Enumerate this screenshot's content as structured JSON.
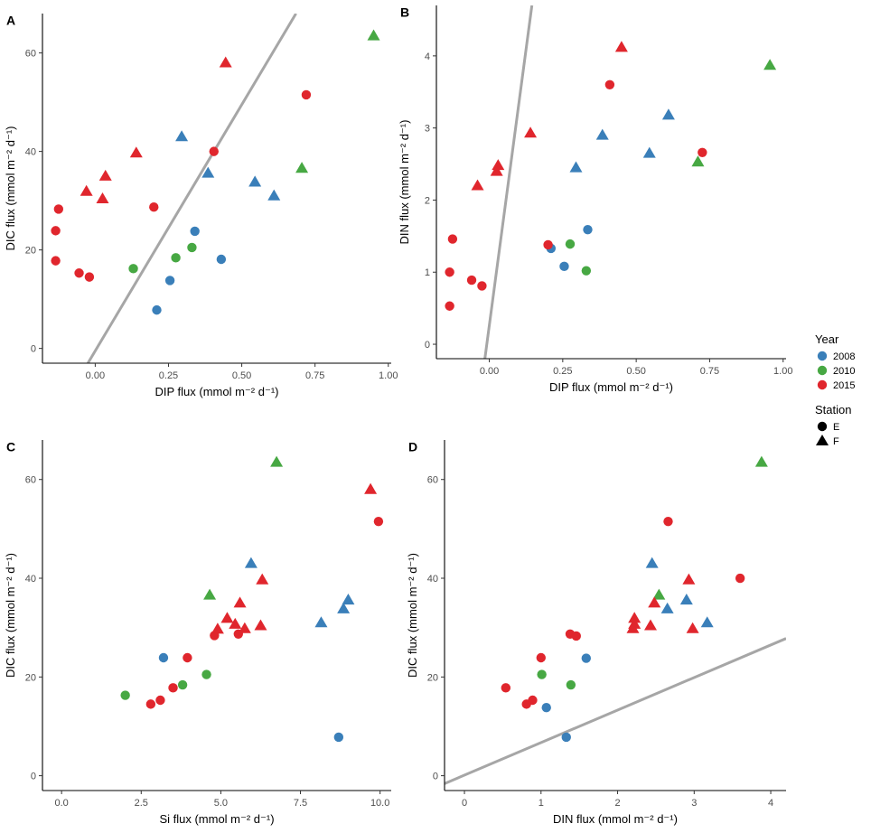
{
  "colors": {
    "y2008": "#3a7fb9",
    "y2010": "#47a843",
    "y2015": "#e0262d",
    "refline": "#a6a6a6"
  },
  "legend": {
    "year_title": "Year",
    "years": [
      {
        "label": "2008",
        "color": "#3a7fb9"
      },
      {
        "label": "2010",
        "color": "#47a843"
      },
      {
        "label": "2015",
        "color": "#e0262d"
      }
    ],
    "station_title": "Station",
    "stations": [
      {
        "label": "E",
        "shape": "circle"
      },
      {
        "label": "F",
        "shape": "triangle"
      }
    ]
  },
  "chart_data": [
    {
      "panel": "A",
      "type": "scatter",
      "xlabel": "DIP flux (mmol m⁻² d⁻¹)",
      "ylabel": "DIC flux (mmol m⁻² d⁻¹)",
      "xlim": [
        -0.18,
        1.01
      ],
      "ylim": [
        -3,
        68
      ],
      "xticks": [
        0,
        0.25,
        0.5,
        0.75,
        1.0
      ],
      "xtick_labels": [
        "0.00",
        "0.25",
        "0.50",
        "0.75",
        "1.00"
      ],
      "yticks": [
        0,
        20,
        40,
        60
      ],
      "ytick_labels": [
        "0",
        "20",
        "40",
        "60"
      ],
      "reference_line": {
        "x1": -0.025,
        "y1": -3,
        "x2": 0.685,
        "y2": 68
      },
      "points": [
        {
          "x": 0.21,
          "y": 7.8,
          "year": "2008",
          "station": "E"
        },
        {
          "x": 0.255,
          "y": 13.8,
          "year": "2008",
          "station": "E"
        },
        {
          "x": 0.34,
          "y": 23.8,
          "year": "2008",
          "station": "E"
        },
        {
          "x": 0.43,
          "y": 18.1,
          "year": "2008",
          "station": "E"
        },
        {
          "x": 0.295,
          "y": 43,
          "year": "2008",
          "station": "F"
        },
        {
          "x": 0.385,
          "y": 35.6,
          "year": "2008",
          "station": "F"
        },
        {
          "x": 0.545,
          "y": 33.8,
          "year": "2008",
          "station": "F"
        },
        {
          "x": 0.61,
          "y": 31,
          "year": "2008",
          "station": "F"
        },
        {
          "x": 0.13,
          "y": 16.2,
          "year": "2010",
          "station": "E"
        },
        {
          "x": 0.275,
          "y": 18.4,
          "year": "2010",
          "station": "E"
        },
        {
          "x": 0.33,
          "y": 20.5,
          "year": "2010",
          "station": "E"
        },
        {
          "x": 0.705,
          "y": 36.6,
          "year": "2010",
          "station": "F"
        },
        {
          "x": 0.95,
          "y": 63.5,
          "year": "2010",
          "station": "F"
        },
        {
          "x": -0.135,
          "y": 17.8,
          "year": "2015",
          "station": "E"
        },
        {
          "x": -0.135,
          "y": 23.9,
          "year": "2015",
          "station": "E"
        },
        {
          "x": -0.125,
          "y": 28.3,
          "year": "2015",
          "station": "E"
        },
        {
          "x": -0.055,
          "y": 15.3,
          "year": "2015",
          "station": "E"
        },
        {
          "x": -0.02,
          "y": 14.5,
          "year": "2015",
          "station": "E"
        },
        {
          "x": 0.2,
          "y": 28.7,
          "year": "2015",
          "station": "E"
        },
        {
          "x": 0.405,
          "y": 40,
          "year": "2015",
          "station": "E"
        },
        {
          "x": 0.72,
          "y": 51.5,
          "year": "2015",
          "station": "E"
        },
        {
          "x": -0.03,
          "y": 31.9,
          "year": "2015",
          "station": "F"
        },
        {
          "x": 0.025,
          "y": 30.4,
          "year": "2015",
          "station": "F"
        },
        {
          "x": 0.035,
          "y": 35,
          "year": "2015",
          "station": "F"
        },
        {
          "x": 0.14,
          "y": 39.7,
          "year": "2015",
          "station": "F"
        },
        {
          "x": 0.445,
          "y": 58,
          "year": "2015",
          "station": "F"
        }
      ]
    },
    {
      "panel": "B",
      "type": "scatter",
      "xlabel": "DIP flux (mmol m⁻² d⁻¹)",
      "ylabel": "DIN flux (mmol m⁻² d⁻¹)",
      "xlim": [
        -0.18,
        1.01
      ],
      "ylim": [
        -0.2,
        4.7
      ],
      "xticks": [
        0,
        0.25,
        0.5,
        0.75,
        1.0
      ],
      "xtick_labels": [
        "0.00",
        "0.25",
        "0.50",
        "0.75",
        "1.00"
      ],
      "yticks": [
        0,
        1,
        2,
        3,
        4
      ],
      "ytick_labels": [
        "0",
        "1",
        "2",
        "3",
        "4"
      ],
      "reference_line": {
        "x1": -0.015,
        "y1": -0.2,
        "x2": 0.145,
        "y2": 4.7
      },
      "points": [
        {
          "x": 0.21,
          "y": 1.33,
          "year": "2008",
          "station": "E"
        },
        {
          "x": 0.255,
          "y": 1.08,
          "year": "2008",
          "station": "E"
        },
        {
          "x": 0.335,
          "y": 1.59,
          "year": "2008",
          "station": "E"
        },
        {
          "x": 0.295,
          "y": 2.45,
          "year": "2008",
          "station": "F"
        },
        {
          "x": 0.385,
          "y": 2.9,
          "year": "2008",
          "station": "F"
        },
        {
          "x": 0.545,
          "y": 2.65,
          "year": "2008",
          "station": "F"
        },
        {
          "x": 0.61,
          "y": 3.18,
          "year": "2008",
          "station": "F"
        },
        {
          "x": 0.275,
          "y": 1.39,
          "year": "2010",
          "station": "E"
        },
        {
          "x": 0.33,
          "y": 1.02,
          "year": "2010",
          "station": "E"
        },
        {
          "x": 0.71,
          "y": 2.53,
          "year": "2010",
          "station": "F"
        },
        {
          "x": 0.955,
          "y": 3.87,
          "year": "2010",
          "station": "F"
        },
        {
          "x": -0.135,
          "y": 0.53,
          "year": "2015",
          "station": "E"
        },
        {
          "x": -0.135,
          "y": 1.0,
          "year": "2015",
          "station": "E"
        },
        {
          "x": -0.125,
          "y": 1.46,
          "year": "2015",
          "station": "E"
        },
        {
          "x": -0.06,
          "y": 0.89,
          "year": "2015",
          "station": "E"
        },
        {
          "x": -0.025,
          "y": 0.81,
          "year": "2015",
          "station": "E"
        },
        {
          "x": 0.2,
          "y": 1.38,
          "year": "2015",
          "station": "E"
        },
        {
          "x": 0.41,
          "y": 3.6,
          "year": "2015",
          "station": "E"
        },
        {
          "x": 0.725,
          "y": 2.66,
          "year": "2015",
          "station": "E"
        },
        {
          "x": -0.04,
          "y": 2.2,
          "year": "2015",
          "station": "F"
        },
        {
          "x": 0.025,
          "y": 2.4,
          "year": "2015",
          "station": "F"
        },
        {
          "x": 0.03,
          "y": 2.48,
          "year": "2015",
          "station": "F"
        },
        {
          "x": 0.14,
          "y": 2.93,
          "year": "2015",
          "station": "F"
        },
        {
          "x": 0.45,
          "y": 4.12,
          "year": "2015",
          "station": "F"
        }
      ]
    },
    {
      "panel": "C",
      "type": "scatter",
      "xlabel": "Si flux (mmol m⁻² d⁻¹)",
      "ylabel": "DIC flux (mmol m⁻² d⁻¹)",
      "xlim": [
        -0.6,
        10.35
      ],
      "ylim": [
        -3,
        68
      ],
      "xticks": [
        0,
        2.5,
        5,
        7.5,
        10
      ],
      "xtick_labels": [
        "0.0",
        "2.5",
        "5.0",
        "7.5",
        "10.0"
      ],
      "yticks": [
        0,
        20,
        40,
        60
      ],
      "ytick_labels": [
        "0",
        "20",
        "40",
        "60"
      ],
      "points": [
        {
          "x": 3.2,
          "y": 23.9,
          "year": "2008",
          "station": "E"
        },
        {
          "x": 8.7,
          "y": 7.8,
          "year": "2008",
          "station": "E"
        },
        {
          "x": 5.95,
          "y": 43,
          "year": "2008",
          "station": "F"
        },
        {
          "x": 8.15,
          "y": 31,
          "year": "2008",
          "station": "F"
        },
        {
          "x": 8.85,
          "y": 33.8,
          "year": "2008",
          "station": "F"
        },
        {
          "x": 9.0,
          "y": 35.6,
          "year": "2008",
          "station": "F"
        },
        {
          "x": 2.0,
          "y": 16.3,
          "year": "2010",
          "station": "E"
        },
        {
          "x": 3.8,
          "y": 18.4,
          "year": "2010",
          "station": "E"
        },
        {
          "x": 4.55,
          "y": 20.5,
          "year": "2010",
          "station": "E"
        },
        {
          "x": 4.65,
          "y": 36.6,
          "year": "2010",
          "station": "F"
        },
        {
          "x": 6.75,
          "y": 63.5,
          "year": "2010",
          "station": "F"
        },
        {
          "x": 2.8,
          "y": 14.5,
          "year": "2015",
          "station": "E"
        },
        {
          "x": 3.1,
          "y": 15.3,
          "year": "2015",
          "station": "E"
        },
        {
          "x": 3.5,
          "y": 17.8,
          "year": "2015",
          "station": "E"
        },
        {
          "x": 3.95,
          "y": 23.9,
          "year": "2015",
          "station": "E"
        },
        {
          "x": 4.8,
          "y": 28.4,
          "year": "2015",
          "station": "E"
        },
        {
          "x": 5.55,
          "y": 28.7,
          "year": "2015",
          "station": "E"
        },
        {
          "x": 9.95,
          "y": 51.5,
          "year": "2015",
          "station": "E"
        },
        {
          "x": 4.9,
          "y": 29.7,
          "year": "2015",
          "station": "F"
        },
        {
          "x": 5.2,
          "y": 31.9,
          "year": "2015",
          "station": "F"
        },
        {
          "x": 5.45,
          "y": 30.7,
          "year": "2015",
          "station": "F"
        },
        {
          "x": 5.6,
          "y": 35,
          "year": "2015",
          "station": "F"
        },
        {
          "x": 5.75,
          "y": 29.8,
          "year": "2015",
          "station": "F"
        },
        {
          "x": 6.25,
          "y": 30.4,
          "year": "2015",
          "station": "F"
        },
        {
          "x": 6.3,
          "y": 39.7,
          "year": "2015",
          "station": "F"
        },
        {
          "x": 9.7,
          "y": 58,
          "year": "2015",
          "station": "F"
        }
      ]
    },
    {
      "panel": "D",
      "type": "scatter",
      "xlabel": "DIN flux (mmol m⁻² d⁻¹)",
      "ylabel": "DIC flux (mmol m⁻² d⁻¹)",
      "xlim": [
        -0.26,
        4.2
      ],
      "ylim": [
        -3,
        68
      ],
      "xticks": [
        0,
        1,
        2,
        3,
        4
      ],
      "xtick_labels": [
        "0",
        "1",
        "2",
        "3",
        "4"
      ],
      "yticks": [
        0,
        20,
        40,
        60
      ],
      "ytick_labels": [
        "0",
        "20",
        "40",
        "60"
      ],
      "reference_line": {
        "x1": -0.26,
        "y1": -1.6,
        "x2": 4.2,
        "y2": 27.8
      },
      "points": [
        {
          "x": 1.07,
          "y": 13.8,
          "year": "2008",
          "station": "E"
        },
        {
          "x": 1.33,
          "y": 7.8,
          "year": "2008",
          "station": "E"
        },
        {
          "x": 1.59,
          "y": 23.8,
          "year": "2008",
          "station": "E"
        },
        {
          "x": 2.45,
          "y": 43,
          "year": "2008",
          "station": "F"
        },
        {
          "x": 2.65,
          "y": 33.8,
          "year": "2008",
          "station": "F"
        },
        {
          "x": 2.9,
          "y": 35.6,
          "year": "2008",
          "station": "F"
        },
        {
          "x": 3.17,
          "y": 31,
          "year": "2008",
          "station": "F"
        },
        {
          "x": 1.01,
          "y": 20.5,
          "year": "2010",
          "station": "E"
        },
        {
          "x": 1.39,
          "y": 18.4,
          "year": "2010",
          "station": "E"
        },
        {
          "x": 2.54,
          "y": 36.6,
          "year": "2010",
          "station": "F"
        },
        {
          "x": 3.88,
          "y": 63.5,
          "year": "2010",
          "station": "F"
        },
        {
          "x": 0.54,
          "y": 17.8,
          "year": "2015",
          "station": "E"
        },
        {
          "x": 0.81,
          "y": 14.5,
          "year": "2015",
          "station": "E"
        },
        {
          "x": 0.89,
          "y": 15.3,
          "year": "2015",
          "station": "E"
        },
        {
          "x": 1.0,
          "y": 23.9,
          "year": "2015",
          "station": "E"
        },
        {
          "x": 1.38,
          "y": 28.7,
          "year": "2015",
          "station": "E"
        },
        {
          "x": 1.46,
          "y": 28.3,
          "year": "2015",
          "station": "E"
        },
        {
          "x": 2.66,
          "y": 51.5,
          "year": "2015",
          "station": "E"
        },
        {
          "x": 3.6,
          "y": 40,
          "year": "2015",
          "station": "E"
        },
        {
          "x": 2.2,
          "y": 29.8,
          "year": "2015",
          "station": "F"
        },
        {
          "x": 2.22,
          "y": 31.9,
          "year": "2015",
          "station": "F"
        },
        {
          "x": 2.22,
          "y": 30.7,
          "year": "2015",
          "station": "F"
        },
        {
          "x": 2.43,
          "y": 30.4,
          "year": "2015",
          "station": "F"
        },
        {
          "x": 2.48,
          "y": 35,
          "year": "2015",
          "station": "F"
        },
        {
          "x": 2.93,
          "y": 39.7,
          "year": "2015",
          "station": "F"
        },
        {
          "x": 2.98,
          "y": 29.8,
          "year": "2015",
          "station": "F"
        }
      ]
    }
  ]
}
